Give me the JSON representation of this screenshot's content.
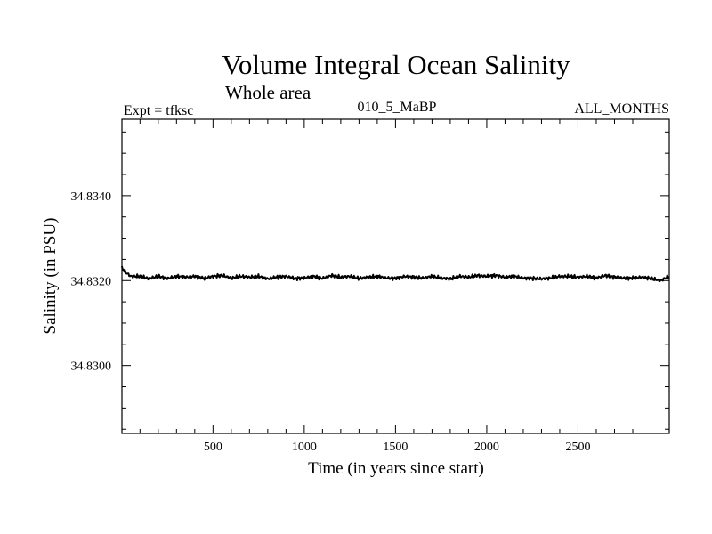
{
  "chart_data": {
    "type": "line",
    "title": "Volume Integral Ocean Salinity",
    "subtitle": "Whole area",
    "header_left": "Expt = tfksc",
    "header_center": "010_5_MaBP",
    "header_right": "ALL_MONTHS",
    "xlabel": "Time (in years since start)",
    "ylabel": "Salinity (in PSU)",
    "xlim": [
      1,
      3000
    ],
    "ylim": [
      34.8284,
      34.8358
    ],
    "x_ticks": [
      500,
      1000,
      1500,
      2000,
      2500
    ],
    "x_tick_labels": [
      "500",
      "1000",
      "1500",
      "2000",
      "2500"
    ],
    "y_ticks": [
      34.83,
      34.832,
      34.834
    ],
    "y_tick_labels": [
      "34.8300",
      "34.8320",
      "34.8340"
    ],
    "series": [
      {
        "name": "Salinity",
        "color": "#000000",
        "x": [
          1,
          20,
          50,
          100,
          150,
          200,
          250,
          300,
          350,
          400,
          450,
          500,
          550,
          600,
          650,
          700,
          750,
          800,
          850,
          900,
          950,
          1000,
          1050,
          1100,
          1150,
          1200,
          1250,
          1300,
          1350,
          1400,
          1450,
          1500,
          1550,
          1600,
          1650,
          1700,
          1750,
          1800,
          1850,
          1900,
          1950,
          2000,
          2050,
          2100,
          2150,
          2200,
          2250,
          2300,
          2350,
          2400,
          2450,
          2500,
          2550,
          2600,
          2650,
          2700,
          2750,
          2800,
          2850,
          2900,
          2950,
          3000
        ],
        "values": [
          34.8323,
          34.8322,
          34.8321,
          34.8321,
          34.83205,
          34.8321,
          34.83205,
          34.8321,
          34.83208,
          34.8321,
          34.83205,
          34.8321,
          34.83212,
          34.83206,
          34.8321,
          34.83208,
          34.8321,
          34.83204,
          34.83208,
          34.8321,
          34.83205,
          34.83206,
          34.8321,
          34.83205,
          34.83212,
          34.83208,
          34.8321,
          34.83205,
          34.83208,
          34.8321,
          34.83206,
          34.83205,
          34.8321,
          34.83208,
          34.83206,
          34.8321,
          34.83206,
          34.83204,
          34.8321,
          34.83208,
          34.83212,
          34.8321,
          34.83212,
          34.83208,
          34.8321,
          34.83206,
          34.83205,
          34.83204,
          34.83206,
          34.8321,
          34.8321,
          34.83208,
          34.8321,
          34.83206,
          34.83212,
          34.83208,
          34.83206,
          34.83206,
          34.83208,
          34.83205,
          34.832,
          34.8321
        ]
      }
    ]
  }
}
